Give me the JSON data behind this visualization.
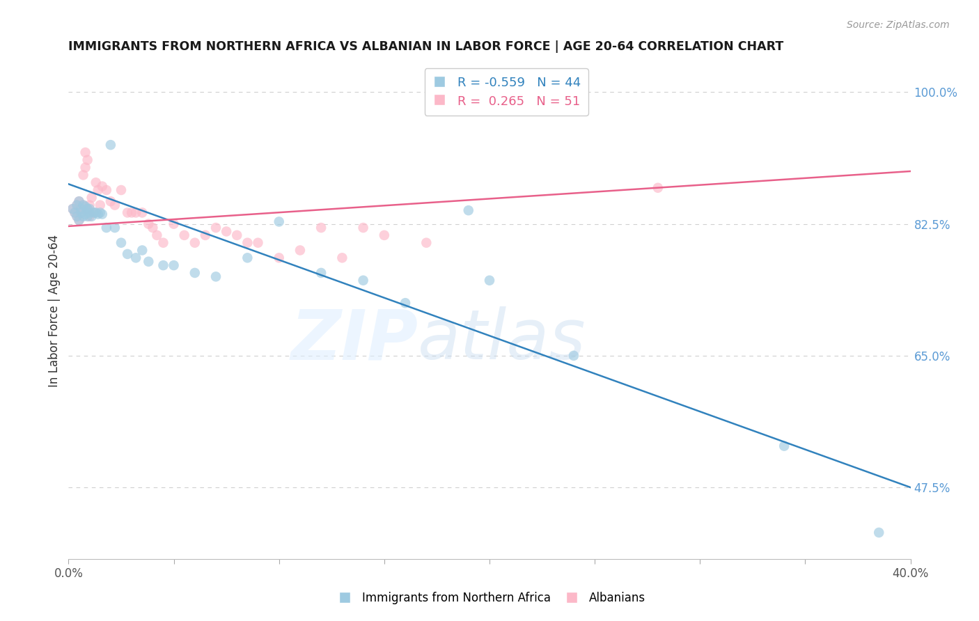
{
  "title": "IMMIGRANTS FROM NORTHERN AFRICA VS ALBANIAN IN LABOR FORCE | AGE 20-64 CORRELATION CHART",
  "source": "Source: ZipAtlas.com",
  "ylabel": "In Labor Force | Age 20-64",
  "xlim": [
    0.0,
    0.4
  ],
  "ylim": [
    0.38,
    1.04
  ],
  "yticks": [
    1.0,
    0.825,
    0.65,
    0.475
  ],
  "ytick_labels": [
    "100.0%",
    "82.5%",
    "65.0%",
    "47.5%"
  ],
  "xticks": [
    0.0,
    0.05,
    0.1,
    0.15,
    0.2,
    0.25,
    0.3,
    0.35,
    0.4
  ],
  "blue_color": "#9ecae1",
  "pink_color": "#fcb8c8",
  "blue_line_color": "#3182bd",
  "pink_line_color": "#e8608a",
  "legend_blue_r": "-0.559",
  "legend_blue_n": "44",
  "legend_pink_r": "0.265",
  "legend_pink_n": "51",
  "blue_scatter_x": [
    0.002,
    0.003,
    0.004,
    0.004,
    0.005,
    0.005,
    0.006,
    0.006,
    0.007,
    0.007,
    0.008,
    0.008,
    0.009,
    0.009,
    0.01,
    0.01,
    0.011,
    0.012,
    0.013,
    0.014,
    0.015,
    0.016,
    0.018,
    0.02,
    0.022,
    0.025,
    0.028,
    0.032,
    0.035,
    0.038,
    0.045,
    0.05,
    0.06,
    0.07,
    0.085,
    0.1,
    0.12,
    0.14,
    0.16,
    0.19,
    0.2,
    0.24,
    0.34,
    0.385
  ],
  "blue_scatter_y": [
    0.845,
    0.84,
    0.85,
    0.835,
    0.855,
    0.83,
    0.845,
    0.84,
    0.85,
    0.835,
    0.848,
    0.838,
    0.845,
    0.835,
    0.845,
    0.84,
    0.835,
    0.84,
    0.84,
    0.838,
    0.84,
    0.838,
    0.82,
    0.93,
    0.82,
    0.8,
    0.785,
    0.78,
    0.79,
    0.775,
    0.77,
    0.77,
    0.76,
    0.755,
    0.78,
    0.828,
    0.76,
    0.75,
    0.72,
    0.843,
    0.75,
    0.65,
    0.53,
    0.415
  ],
  "pink_scatter_x": [
    0.002,
    0.003,
    0.004,
    0.004,
    0.005,
    0.005,
    0.006,
    0.006,
    0.007,
    0.007,
    0.008,
    0.008,
    0.009,
    0.009,
    0.01,
    0.01,
    0.011,
    0.012,
    0.013,
    0.014,
    0.015,
    0.016,
    0.018,
    0.02,
    0.022,
    0.025,
    0.028,
    0.03,
    0.032,
    0.035,
    0.038,
    0.04,
    0.042,
    0.045,
    0.05,
    0.055,
    0.06,
    0.065,
    0.07,
    0.075,
    0.08,
    0.085,
    0.09,
    0.1,
    0.11,
    0.12,
    0.13,
    0.14,
    0.15,
    0.17,
    0.28
  ],
  "pink_scatter_y": [
    0.845,
    0.84,
    0.85,
    0.835,
    0.855,
    0.83,
    0.845,
    0.84,
    0.89,
    0.85,
    0.9,
    0.92,
    0.845,
    0.91,
    0.85,
    0.835,
    0.86,
    0.84,
    0.88,
    0.87,
    0.85,
    0.875,
    0.87,
    0.855,
    0.85,
    0.87,
    0.84,
    0.84,
    0.84,
    0.84,
    0.825,
    0.82,
    0.81,
    0.8,
    0.825,
    0.81,
    0.8,
    0.81,
    0.82,
    0.815,
    0.81,
    0.8,
    0.8,
    0.78,
    0.79,
    0.82,
    0.78,
    0.82,
    0.81,
    0.8,
    0.873
  ],
  "blue_line_x": [
    0.0,
    0.4
  ],
  "blue_line_y": [
    0.878,
    0.475
  ],
  "pink_line_x": [
    0.0,
    0.4
  ],
  "pink_line_y": [
    0.822,
    0.895
  ],
  "watermark_zip": "ZIP",
  "watermark_atlas": "atlas",
  "background_color": "#ffffff",
  "grid_color": "#d0d0d0",
  "title_fontsize": 12.5,
  "axis_label_color": "#5b9bd5",
  "tick_label_color": "#5b9bd5"
}
